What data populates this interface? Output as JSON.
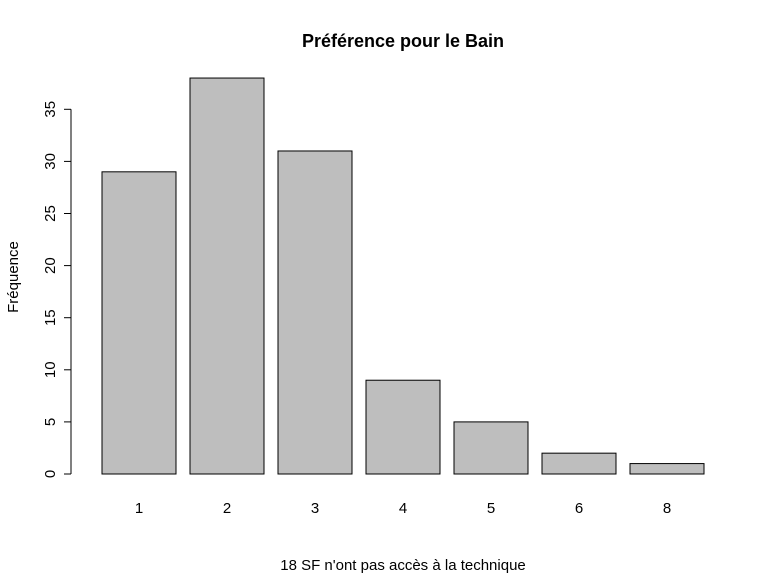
{
  "chart_data": {
    "type": "bar",
    "title": "Préférence pour le Bain",
    "xlabel": "18 SF n'ont pas accès à la technique",
    "ylabel": "Fréquence",
    "categories": [
      "1",
      "2",
      "3",
      "4",
      "5",
      "6",
      "8"
    ],
    "values": [
      29,
      38,
      31,
      9,
      5,
      2,
      1
    ],
    "ylim": [
      0,
      38
    ],
    "yticks": [
      0,
      5,
      10,
      15,
      20,
      25,
      30,
      35
    ],
    "bar_color": "#bebebe",
    "grid": false
  }
}
